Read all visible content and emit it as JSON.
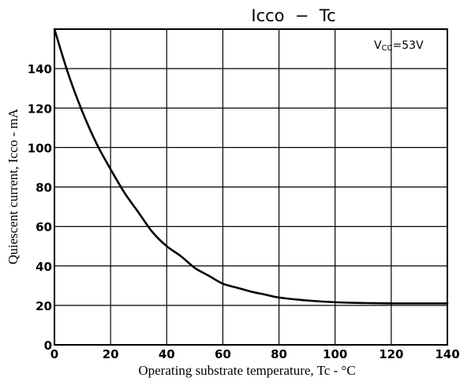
{
  "chart_data": {
    "type": "line",
    "title": "Icco  −  Tc",
    "xlabel": "Operating substrate temperature, Tc - °C",
    "ylabel": "Quiescent current, Icco - mA",
    "annotation": {
      "symbol": "V",
      "subscript": "CC",
      "value_text": "=53V"
    },
    "xlim": [
      0,
      140
    ],
    "ylim": [
      0,
      160
    ],
    "x_ticks": [
      0,
      20,
      40,
      60,
      80,
      100,
      120,
      140
    ],
    "x_tick_labels": [
      "0",
      "20",
      "40",
      "60",
      "80",
      "100",
      "120",
      "140"
    ],
    "y_ticks": [
      0,
      20,
      40,
      60,
      80,
      100,
      120,
      140
    ],
    "y_tick_labels": [
      "0",
      "20",
      "40",
      "60",
      "80",
      "100",
      "120",
      "140"
    ],
    "grid": true,
    "series": [
      {
        "x": [
          0,
          5,
          10,
          15,
          20,
          25,
          30,
          35,
          40,
          45,
          50,
          55,
          60,
          65,
          70,
          75,
          80,
          90,
          100,
          110,
          120,
          130,
          140
        ],
        "y": [
          160,
          137,
          118,
          102,
          89,
          77,
          67,
          57,
          50,
          45,
          39,
          35,
          31,
          29,
          27,
          25.5,
          24,
          22.5,
          21.6,
          21.2,
          21,
          21,
          21
        ]
      }
    ],
    "color": "#000000"
  }
}
